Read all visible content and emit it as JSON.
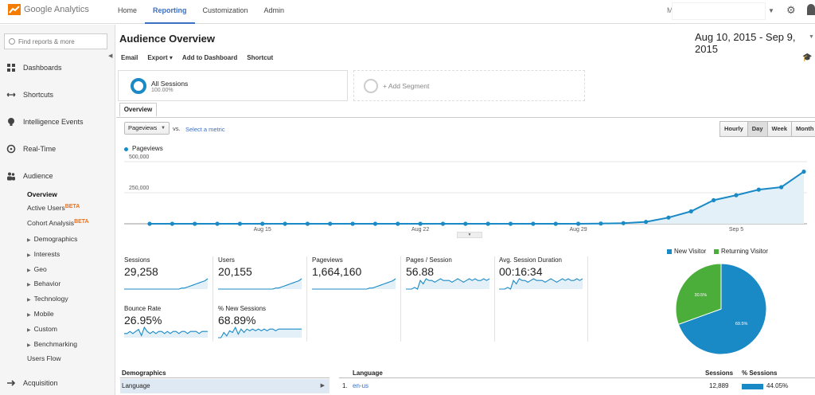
{
  "header": {
    "logo_text": "Google Analytics",
    "nav": [
      "Home",
      "Reporting",
      "Customization",
      "Admin"
    ],
    "active_nav": "Reporting",
    "account_initial": "M"
  },
  "sidebar": {
    "search_placeholder": "Find reports & more",
    "items": [
      {
        "label": "Dashboards",
        "icon": "grid-icon"
      },
      {
        "label": "Shortcuts",
        "icon": "shortcut-arrows-icon"
      },
      {
        "label": "Intelligence Events",
        "icon": "lightbulb-icon"
      },
      {
        "label": "Real-Time",
        "icon": "realtime-clock-icon"
      },
      {
        "label": "Audience",
        "icon": "audience-people-icon"
      },
      {
        "label": "Acquisition",
        "icon": "acquisition-arrow-icon"
      }
    ],
    "audience_sub": [
      {
        "label": "Overview",
        "beta": ""
      },
      {
        "label": "Active Users",
        "beta": "BETA"
      },
      {
        "label": "Cohort Analysis",
        "beta": "BETA"
      },
      {
        "label": "Demographics",
        "beta": ""
      },
      {
        "label": "Interests",
        "beta": ""
      },
      {
        "label": "Geo",
        "beta": ""
      },
      {
        "label": "Behavior",
        "beta": ""
      },
      {
        "label": "Technology",
        "beta": ""
      },
      {
        "label": "Mobile",
        "beta": ""
      },
      {
        "label": "Custom",
        "beta": ""
      },
      {
        "label": "Benchmarking",
        "beta": ""
      },
      {
        "label": "Users Flow",
        "beta": ""
      }
    ]
  },
  "page": {
    "title": "Audience Overview",
    "date_range": "Aug 10, 2015 - Sep 9, 2015",
    "toolbar": {
      "email": "Email",
      "export": "Export ▾",
      "add_dashboard": "Add to Dashboard",
      "shortcut": "Shortcut"
    }
  },
  "segments": {
    "active_name": "All Sessions",
    "active_pct": "100.00%",
    "add_label": "+ Add Segment"
  },
  "tabs": {
    "overview": "Overview"
  },
  "controls": {
    "metric": "Pageviews",
    "vs": "vs.",
    "select_metric": "Select a metric",
    "granularity": [
      "Hourly",
      "Day",
      "Week",
      "Month"
    ],
    "active_granularity": "Day"
  },
  "chart_data": {
    "type": "area",
    "series": [
      {
        "name": "Pageviews",
        "values": [
          0,
          0,
          0,
          0,
          0,
          0,
          0,
          0,
          0,
          0,
          0,
          0,
          0,
          0,
          0,
          0,
          0,
          0,
          0,
          0,
          2000,
          5000,
          15000,
          50000,
          100000,
          190000,
          230000,
          275000,
          295000,
          420000
        ]
      }
    ],
    "x_ticks": [
      "Aug 15",
      "Aug 22",
      "Aug 29",
      "Sep 5"
    ],
    "y_ticks": [
      "500,000",
      "250,000"
    ],
    "ylim": [
      0,
      500000
    ],
    "x_start": "Aug 10, 2015",
    "x_end": "Sep 9, 2015",
    "color": "#1a8ac6",
    "grid": true
  },
  "kpis": [
    {
      "label": "Sessions",
      "value": "29,258"
    },
    {
      "label": "Users",
      "value": "20,155"
    },
    {
      "label": "Pageviews",
      "value": "1,664,160"
    },
    {
      "label": "Pages / Session",
      "value": "56.88"
    },
    {
      "label": "Avg. Session Duration",
      "value": "00:16:34"
    },
    {
      "label": "Bounce Rate",
      "value": "26.95%"
    },
    {
      "label": "% New Sessions",
      "value": "68.89%"
    }
  ],
  "pie": {
    "type": "pie",
    "slices": [
      {
        "name": "New Visitor",
        "value": 69.5,
        "label": "69.5%",
        "color": "#1a8ac6"
      },
      {
        "name": "Returning Visitor",
        "value": 30.5,
        "label": "30.5%",
        "color": "#4cae3a"
      }
    ]
  },
  "bottom": {
    "demographics_heading": "Demographics",
    "demographics_selected": "Language",
    "language_heading": "Language",
    "sessions_heading": "Sessions",
    "pct_sessions_heading": "% Sessions",
    "rows": [
      {
        "index": "1.",
        "language": "en-us",
        "sessions": "12,889",
        "pct": "44.05%"
      }
    ]
  }
}
